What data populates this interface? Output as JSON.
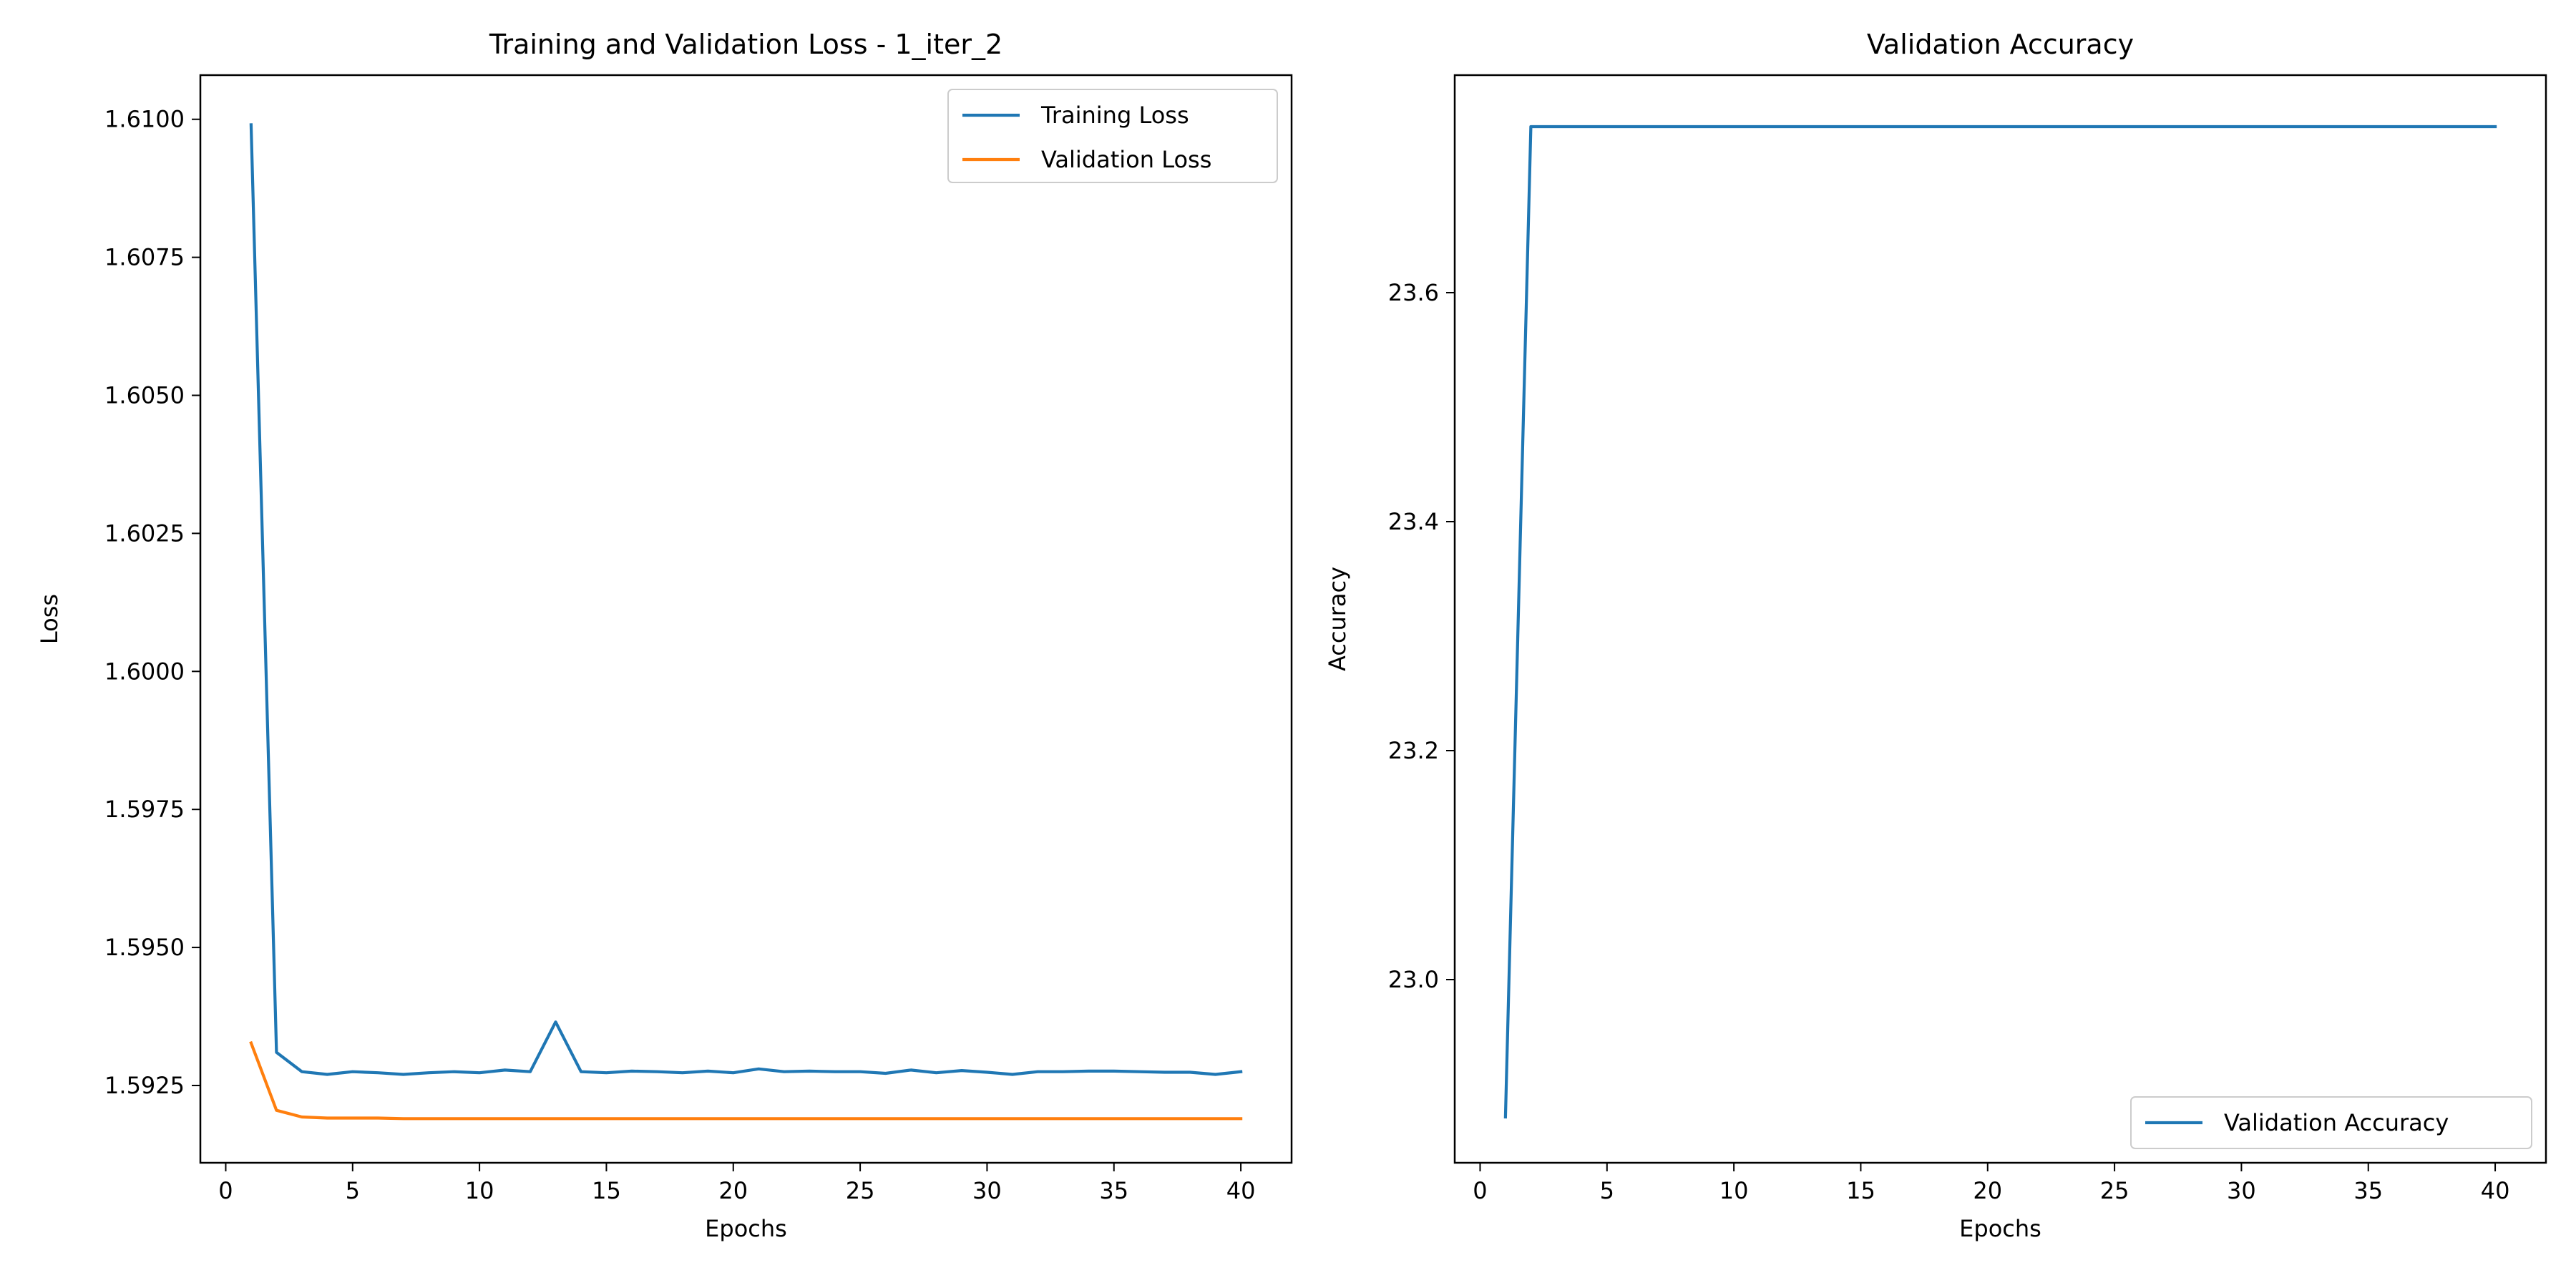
{
  "chart_data": [
    {
      "type": "line",
      "title": "Training and Validation Loss - 1_iter_2",
      "xlabel": "Epochs",
      "ylabel": "Loss",
      "xlim": [
        -1,
        42
      ],
      "ylim": [
        1.5911,
        1.6108
      ],
      "xticks": [
        0,
        5,
        10,
        15,
        20,
        25,
        30,
        35,
        40
      ],
      "yticks": [
        1.5925,
        1.595,
        1.5975,
        1.6,
        1.6025,
        1.605,
        1.6075,
        1.61
      ],
      "ytick_labels": [
        "1.5925",
        "1.5950",
        "1.5975",
        "1.6000",
        "1.6025",
        "1.6050",
        "1.6075",
        "1.6100"
      ],
      "legend": "top-right",
      "grid": false,
      "x": [
        1,
        2,
        3,
        4,
        5,
        6,
        7,
        8,
        9,
        10,
        11,
        12,
        13,
        14,
        15,
        16,
        17,
        18,
        19,
        20,
        21,
        22,
        23,
        24,
        25,
        26,
        27,
        28,
        29,
        30,
        31,
        32,
        33,
        34,
        35,
        36,
        37,
        38,
        39,
        40
      ],
      "series": [
        {
          "name": "Training Loss",
          "color": "#1f77b4",
          "values": [
            1.6099,
            1.5931,
            1.59275,
            1.5927,
            1.59275,
            1.59273,
            1.5927,
            1.59273,
            1.59275,
            1.59273,
            1.59278,
            1.59275,
            1.59365,
            1.59275,
            1.59273,
            1.59276,
            1.59275,
            1.59273,
            1.59276,
            1.59273,
            1.5928,
            1.59275,
            1.59276,
            1.59275,
            1.59275,
            1.59272,
            1.59278,
            1.59273,
            1.59277,
            1.59274,
            1.5927,
            1.59275,
            1.59275,
            1.59276,
            1.59276,
            1.59275,
            1.59274,
            1.59274,
            1.5927,
            1.59275
          ]
        },
        {
          "name": "Validation Loss",
          "color": "#ff7f0e",
          "values": [
            1.59327,
            1.59205,
            1.59193,
            1.59191,
            1.59191,
            1.59191,
            1.5919,
            1.5919,
            1.5919,
            1.5919,
            1.5919,
            1.5919,
            1.5919,
            1.5919,
            1.5919,
            1.5919,
            1.5919,
            1.5919,
            1.5919,
            1.5919,
            1.5919,
            1.5919,
            1.5919,
            1.5919,
            1.5919,
            1.5919,
            1.5919,
            1.5919,
            1.5919,
            1.5919,
            1.5919,
            1.5919,
            1.5919,
            1.5919,
            1.5919,
            1.5919,
            1.5919,
            1.5919,
            1.5919,
            1.5919
          ]
        }
      ]
    },
    {
      "type": "line",
      "title": "Validation Accuracy",
      "xlabel": "Epochs",
      "ylabel": "Accuracy",
      "xlim": [
        -1,
        42
      ],
      "ylim": [
        22.84,
        23.79
      ],
      "xticks": [
        0,
        5,
        10,
        15,
        20,
        25,
        30,
        35,
        40
      ],
      "yticks": [
        23.0,
        23.2,
        23.4,
        23.6
      ],
      "ytick_labels": [
        "23.0",
        "23.2",
        "23.4",
        "23.6"
      ],
      "legend": "bottom-right",
      "grid": false,
      "x": [
        1,
        2,
        3,
        4,
        5,
        6,
        7,
        8,
        9,
        10,
        11,
        12,
        13,
        14,
        15,
        16,
        17,
        18,
        19,
        20,
        21,
        22,
        23,
        24,
        25,
        26,
        27,
        28,
        29,
        30,
        31,
        32,
        33,
        34,
        35,
        36,
        37,
        38,
        39,
        40
      ],
      "series": [
        {
          "name": "Validation Accuracy",
          "color": "#1f77b4",
          "values": [
            22.88,
            23.745,
            23.745,
            23.745,
            23.745,
            23.745,
            23.745,
            23.745,
            23.745,
            23.745,
            23.745,
            23.745,
            23.745,
            23.745,
            23.745,
            23.745,
            23.745,
            23.745,
            23.745,
            23.745,
            23.745,
            23.745,
            23.745,
            23.745,
            23.745,
            23.745,
            23.745,
            23.745,
            23.745,
            23.745,
            23.745,
            23.745,
            23.745,
            23.745,
            23.745,
            23.745,
            23.745,
            23.745,
            23.745,
            23.745
          ]
        }
      ]
    }
  ]
}
